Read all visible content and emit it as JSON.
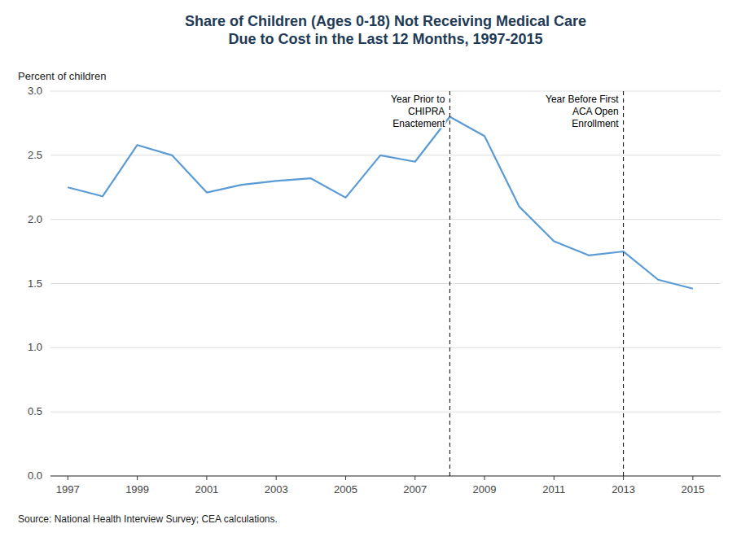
{
  "chart_data": {
    "type": "line",
    "title": "Share of Children (Ages 0-18) Not Receiving Medical Care\nDue to Cost in the Last 12 Months, 1997-2015",
    "y_label": "Percent of children",
    "source": "Source: National Health Interview Survey; CEA calculations.",
    "x": [
      1997,
      1998,
      1999,
      2000,
      2001,
      2002,
      2003,
      2004,
      2005,
      2006,
      2007,
      2008,
      2009,
      2010,
      2011,
      2012,
      2013,
      2014,
      2015
    ],
    "values": [
      2.25,
      2.18,
      2.58,
      2.5,
      2.21,
      2.27,
      2.3,
      2.32,
      2.17,
      2.5,
      2.45,
      2.8,
      2.65,
      2.1,
      1.83,
      1.72,
      1.75,
      1.53,
      1.46
    ],
    "color": "#5B9BD5",
    "annotations": [
      {
        "x": 2008,
        "text": "Year Prior to\nCHIPRA\nEnactement"
      },
      {
        "x": 2013,
        "text": "Year Before First\nACA Open\nEnrollment"
      }
    ],
    "xlim": [
      1996.5,
      2015.8
    ],
    "xticks": [
      1997,
      1999,
      2001,
      2003,
      2005,
      2007,
      2009,
      2011,
      2013,
      2015
    ],
    "ylim": [
      0.0,
      3.0
    ],
    "yticks": [
      {
        "value": 0,
        "label": "0.0"
      },
      0.5,
      {
        "value": 1,
        "label": "1.0"
      },
      1.5,
      {
        "value": 2,
        "label": "2.0"
      },
      2.5,
      {
        "value": 3,
        "label": "3.0"
      }
    ],
    "grid": true
  }
}
